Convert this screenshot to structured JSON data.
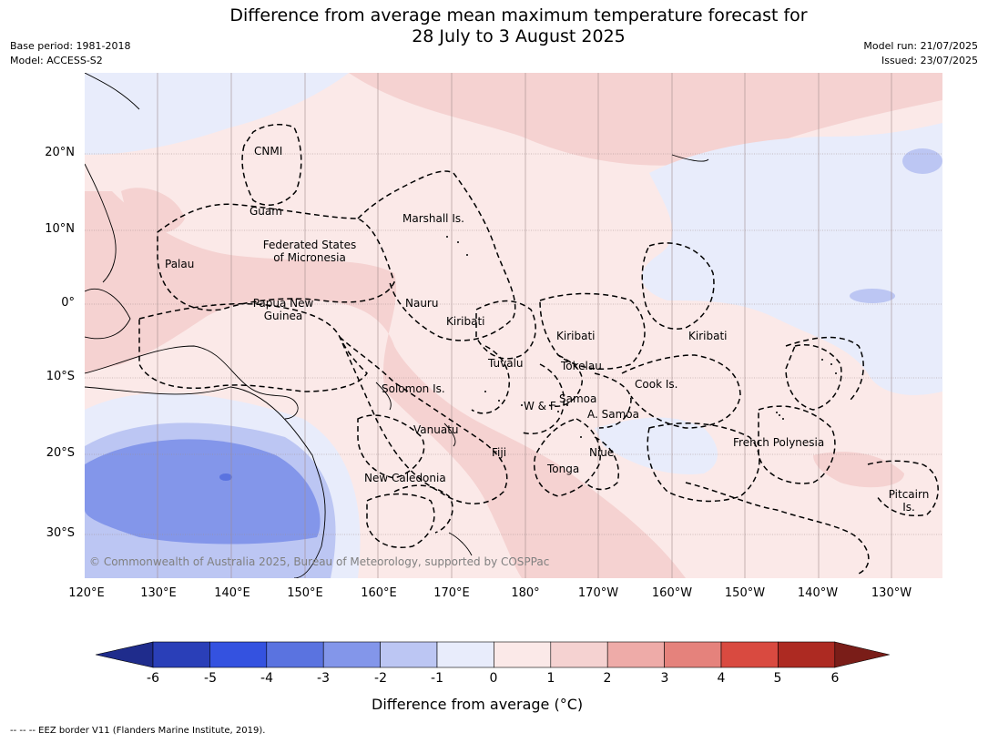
{
  "title_line1": "Difference from average mean maximum temperature forecast for",
  "title_line2": "28 July to 3 August 2025",
  "meta_left": {
    "base_period": "Base period: 1981-2018",
    "model": "Model: ACCESS-S2"
  },
  "meta_right": {
    "model_run": "Model run: 21/07/2025",
    "issued": "Issued: 23/07/2025"
  },
  "map": {
    "lat_labels": [
      "20°N",
      "10°N",
      "0°",
      "10°S",
      "20°S",
      "30°S"
    ],
    "lon_labels": [
      "120°E",
      "130°E",
      "140°E",
      "150°E",
      "160°E",
      "170°E",
      "180°",
      "170°W",
      "160°W",
      "150°W",
      "140°W",
      "130°W"
    ],
    "regions": {
      "cnmi": "CNMI",
      "guam": "Guam",
      "marshall": "Marshall Is.",
      "fsm1": "Federated States",
      "fsm2": "of Micronesia",
      "palau": "Palau",
      "png1": "Papua New",
      "png2": "Guinea",
      "nauru": "Nauru",
      "kiribati_w": "Kiribati",
      "kiribati_c": "Kiribati",
      "kiribati_e": "Kiribati",
      "tuvalu": "Tuvalu",
      "tokelau": "Tokelau",
      "solomon": "Solomon Is.",
      "wf": "W & F",
      "samoa": "Samoa",
      "asamoa": "A. Samoa",
      "cook": "Cook Is.",
      "vanuatu": "Vanuatu",
      "fiji": "Fiji",
      "niue": "Niue",
      "tonga": "Tonga",
      "new_caledonia": "New Caledonia",
      "french_polynesia": "French Polynesia",
      "pitcairn1": "Pitcairn",
      "pitcairn2": "Is."
    },
    "copyright": "© Commonwealth of Australia 2025, Bureau of Meteorology, supported by COSPPac"
  },
  "colorbar": {
    "ticks": [
      "-6",
      "-5",
      "-4",
      "-3",
      "-2",
      "-1",
      "0",
      "1",
      "2",
      "3",
      "4",
      "5",
      "6"
    ],
    "colors": [
      "#1f2c8c",
      "#2a3fb8",
      "#3452e0",
      "#5a73e0",
      "#8396ea",
      "#bcc6f3",
      "#e8ecfb",
      "#fbe9e8",
      "#f5d2d1",
      "#eeaba8",
      "#e5827c",
      "#d94a40",
      "#ad2a22",
      "#7a1d18"
    ],
    "label": "Difference from average (°C)"
  },
  "footnote": "-- -- -- EEZ border V11 (Flanders Marine Institute, 2019)."
}
